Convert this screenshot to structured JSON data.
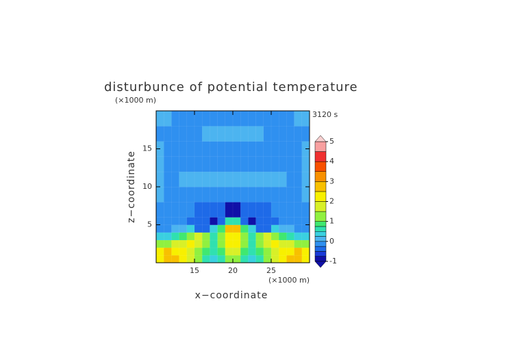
{
  "chart_data": {
    "type": "contour",
    "title": "disturbunce of potential temperature",
    "x_label": "x−coordinate",
    "y_label": "z−coordinate",
    "x_unit": "(×1000 m)",
    "y_unit": "(×1000 m)",
    "time_label": "3120 s",
    "xlim": [
      10,
      30
    ],
    "ylim": [
      0,
      20
    ],
    "xticks": [
      15,
      20,
      25
    ],
    "yticks": [
      5,
      10,
      15
    ],
    "x_edges": [
      10,
      11,
      12,
      13,
      14,
      15,
      16,
      17,
      18,
      19,
      20,
      21,
      22,
      23,
      24,
      25,
      26,
      27,
      28,
      29,
      30
    ],
    "z_edges": [
      0,
      1,
      2,
      3,
      4,
      5,
      6,
      8,
      10,
      12,
      14,
      16,
      18,
      20
    ],
    "values": [
      [
        2.0,
        2.5,
        2.5,
        2.0,
        1.5,
        1.0,
        0.5,
        0.3,
        0.5,
        1.0,
        1.0,
        0.5,
        0.3,
        0.5,
        1.0,
        1.5,
        2.0,
        2.5,
        2.5,
        2.0
      ],
      [
        2.0,
        2.5,
        2.3,
        2.0,
        1.5,
        1.2,
        0.8,
        0.5,
        0.8,
        1.5,
        1.5,
        0.8,
        0.5,
        0.8,
        1.2,
        1.5,
        2.0,
        2.3,
        2.5,
        2.0
      ],
      [
        1.0,
        1.2,
        1.5,
        1.8,
        2.0,
        1.5,
        1.0,
        0.6,
        1.0,
        2.0,
        2.0,
        1.0,
        0.6,
        1.0,
        1.5,
        2.0,
        1.8,
        1.5,
        1.2,
        1.0
      ],
      [
        0.3,
        0.4,
        0.5,
        0.8,
        1.2,
        1.5,
        1.0,
        0.6,
        1.0,
        2.0,
        2.0,
        1.0,
        0.6,
        1.0,
        1.5,
        1.2,
        0.8,
        0.5,
        0.4,
        0.3
      ],
      [
        -0.1,
        -0.1,
        0.0,
        0.1,
        0.3,
        -0.3,
        -0.4,
        0.3,
        0.8,
        2.5,
        2.5,
        0.8,
        0.3,
        -0.4,
        -0.3,
        0.3,
        0.1,
        0.0,
        -0.1,
        -0.1
      ],
      [
        -0.1,
        -0.1,
        -0.2,
        -0.2,
        -0.3,
        -0.3,
        -0.5,
        -0.8,
        -0.5,
        0.5,
        0.5,
        -0.5,
        -0.8,
        -0.5,
        -0.3,
        -0.3,
        -0.2,
        -0.2,
        -0.1,
        -0.1
      ],
      [
        -0.1,
        -0.1,
        -0.1,
        -0.2,
        -0.2,
        -0.3,
        -0.3,
        -0.3,
        -0.5,
        -0.8,
        -0.8,
        -0.5,
        -0.3,
        -0.3,
        -0.3,
        -0.2,
        -0.2,
        -0.1,
        -0.1,
        -0.1
      ],
      [
        0.0,
        -0.1,
        -0.2,
        -0.2,
        -0.2,
        -0.2,
        -0.2,
        -0.2,
        -0.2,
        -0.2,
        -0.2,
        -0.2,
        -0.2,
        -0.2,
        -0.2,
        -0.2,
        -0.2,
        -0.2,
        -0.1,
        0.0
      ],
      [
        0.0,
        -0.1,
        -0.1,
        0.0,
        0.0,
        0.0,
        0.0,
        0.0,
        0.0,
        0.0,
        0.0,
        0.0,
        0.0,
        0.0,
        0.0,
        0.0,
        0.0,
        -0.1,
        -0.1,
        0.0
      ],
      [
        0.0,
        -0.1,
        -0.1,
        -0.1,
        -0.1,
        -0.1,
        -0.1,
        -0.1,
        -0.1,
        -0.1,
        -0.1,
        -0.1,
        -0.1,
        -0.1,
        -0.1,
        -0.1,
        -0.1,
        -0.1,
        -0.1,
        0.0
      ],
      [
        0.0,
        -0.1,
        -0.1,
        -0.1,
        -0.1,
        -0.1,
        -0.1,
        -0.1,
        -0.1,
        -0.1,
        -0.1,
        -0.1,
        -0.1,
        -0.1,
        -0.1,
        -0.1,
        -0.1,
        -0.1,
        -0.1,
        0.0
      ],
      [
        -0.1,
        -0.1,
        -0.1,
        -0.1,
        -0.1,
        -0.1,
        0.0,
        0.0,
        0.0,
        0.0,
        0.0,
        0.0,
        0.0,
        0.0,
        -0.1,
        -0.1,
        -0.1,
        -0.1,
        -0.1,
        -0.1
      ],
      [
        0.0,
        0.0,
        -0.1,
        -0.1,
        -0.1,
        -0.1,
        -0.1,
        -0.1,
        -0.1,
        -0.1,
        -0.1,
        -0.1,
        -0.1,
        -0.1,
        -0.1,
        -0.1,
        -0.1,
        -0.1,
        0.0,
        0.0
      ]
    ],
    "colorbar": {
      "levels": [
        -1,
        -0.75,
        -0.5,
        -0.25,
        0,
        0.25,
        0.5,
        0.75,
        1,
        1.5,
        2,
        2.5,
        3,
        3.5,
        4,
        4.5,
        5
      ],
      "colors": [
        "#1010a8",
        "#1a3ad8",
        "#1e6ae8",
        "#2f90f0",
        "#4cb4f0",
        "#3ad0e0",
        "#30e0b0",
        "#40e870",
        "#90f040",
        "#d8f028",
        "#f8f000",
        "#f8c000",
        "#f89000",
        "#f85000",
        "#f03030",
        "#f8a0a0"
      ],
      "under_color": "#1010a8",
      "over_color": "#f8d0d0",
      "ticks": [
        -1,
        0,
        1,
        2,
        3,
        4,
        5
      ]
    }
  }
}
